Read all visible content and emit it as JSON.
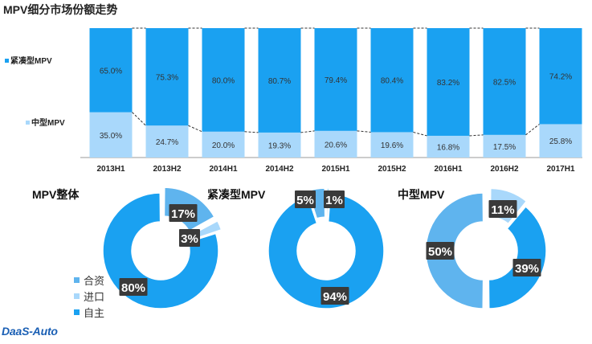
{
  "chart_data": [
    {
      "type": "bar",
      "stacked": true,
      "percent": true,
      "title": "MPV细分市场份额走势",
      "categories": [
        "2013H1",
        "2013H2",
        "2014H1",
        "2014H2",
        "2015H1",
        "2015H2",
        "2016H1",
        "2016H2",
        "2017H1"
      ],
      "series": [
        {
          "name": "中型MPV",
          "values": [
            35.0,
            24.7,
            20.0,
            19.3,
            20.6,
            19.6,
            16.8,
            17.5,
            25.8
          ],
          "labels": [
            "35.0%",
            "24.7%",
            "20.0%",
            "19.3%",
            "20.6%",
            "19.6%",
            "16.8%",
            "17.5%",
            "25.8%"
          ],
          "color": "#a9d8fb"
        },
        {
          "name": "紧凑型MPV",
          "values": [
            65.0,
            75.3,
            80.0,
            80.7,
            79.4,
            80.4,
            83.2,
            82.5,
            74.2
          ],
          "labels": [
            "65.0%",
            "75.3%",
            "80.0%",
            "80.7%",
            "79.4%",
            "80.4%",
            "83.2%",
            "82.5%",
            "74.2%"
          ],
          "color": "#1aa1f1"
        }
      ],
      "ylim": [
        0,
        100
      ],
      "legend_position": "left",
      "connector_lines": "dashed"
    },
    {
      "type": "pie",
      "donut": true,
      "title": "MPV整体",
      "categories": [
        "合资",
        "进口",
        "自主"
      ],
      "values": [
        17,
        3,
        80
      ],
      "labels": [
        "17%",
        "3%",
        "80%"
      ],
      "colors": [
        "#5fb4ee",
        "#a9d8fb",
        "#1aa1f1"
      ]
    },
    {
      "type": "pie",
      "donut": true,
      "title": "紧凑型MPV",
      "categories": [
        "合资",
        "进口",
        "自主"
      ],
      "values": [
        5,
        1,
        94
      ],
      "labels": [
        "5%",
        "1%",
        "94%"
      ],
      "colors": [
        "#5fb4ee",
        "#a9d8fb",
        "#1aa1f1"
      ]
    },
    {
      "type": "pie",
      "donut": true,
      "title": "中型MPV",
      "categories": [
        "合资",
        "进口",
        "自主"
      ],
      "values": [
        50,
        11,
        39
      ],
      "labels": [
        "50%",
        "11%",
        "39%"
      ],
      "colors": [
        "#5fb4ee",
        "#a9d8fb",
        "#1aa1f1"
      ]
    }
  ],
  "legend": {
    "items": [
      {
        "label": "合资",
        "color": "#5fb4ee"
      },
      {
        "label": "进口",
        "color": "#a9d8fb"
      },
      {
        "label": "自主",
        "color": "#1aa1f1"
      }
    ]
  },
  "logo": "DaaS-Auto"
}
